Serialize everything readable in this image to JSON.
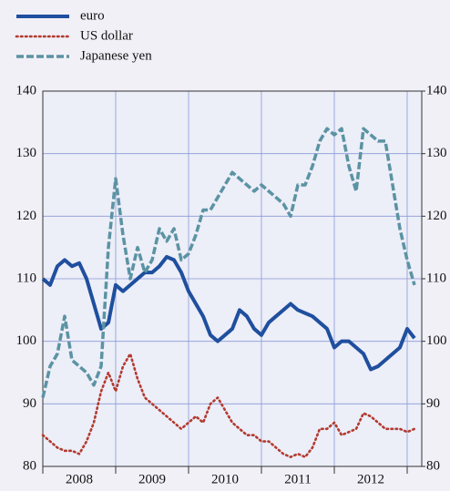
{
  "chart_data": {
    "type": "line",
    "x": [
      2008.0,
      2008.1,
      2008.2,
      2008.3,
      2008.4,
      2008.5,
      2008.6,
      2008.7,
      2008.8,
      2008.9,
      2009.0,
      2009.1,
      2009.2,
      2009.3,
      2009.4,
      2009.5,
      2009.6,
      2009.7,
      2009.8,
      2009.9,
      2010.0,
      2010.1,
      2010.2,
      2010.3,
      2010.4,
      2010.5,
      2010.6,
      2010.7,
      2010.8,
      2010.9,
      2011.0,
      2011.1,
      2011.2,
      2011.3,
      2011.4,
      2011.5,
      2011.6,
      2011.7,
      2011.8,
      2011.9,
      2012.0,
      2012.1,
      2012.2,
      2012.3,
      2012.4,
      2012.5,
      2012.6,
      2012.7,
      2012.8,
      2012.9,
      2013.0,
      2013.1
    ],
    "categories": [
      "2008",
      "2009",
      "2010",
      "2011",
      "2012"
    ],
    "series": [
      {
        "name": "euro",
        "color": "#1f4f9e",
        "style": "solid",
        "values": [
          110,
          109,
          112,
          113,
          112,
          112.5,
          110,
          106,
          102,
          103,
          109,
          108,
          109,
          110,
          111,
          111,
          112,
          113.5,
          113,
          111,
          108,
          106,
          104,
          101,
          100,
          101,
          102,
          105,
          104,
          102,
          101,
          103,
          104,
          105,
          106,
          105,
          104.5,
          104,
          103,
          102,
          99,
          100,
          100,
          99,
          98,
          95.5,
          96,
          97,
          98,
          99,
          102,
          100.5
        ]
      },
      {
        "name": "US dollar",
        "color": "#b33a2e",
        "style": "dotted",
        "values": [
          85,
          84,
          83,
          82.5,
          82.5,
          82,
          84,
          87,
          92,
          95,
          92,
          96,
          98,
          94,
          91,
          90,
          89,
          88,
          87,
          86,
          87,
          88,
          87,
          90,
          91,
          89,
          87,
          86,
          85,
          85,
          84,
          84,
          83,
          82,
          81.5,
          82,
          81.5,
          83,
          86,
          86,
          87,
          85,
          85.5,
          86,
          88.5,
          88,
          87,
          86,
          86,
          86,
          85.5,
          86
        ]
      },
      {
        "name": "Japanese yen",
        "color": "#5b93a3",
        "style": "dashed",
        "values": [
          91,
          96,
          98,
          104,
          97,
          96,
          95,
          93,
          96,
          115,
          126,
          117,
          110,
          115,
          111,
          113,
          118,
          116,
          118,
          113,
          114,
          117,
          121,
          121,
          123,
          125,
          127,
          126,
          125,
          124,
          125,
          124,
          123,
          122,
          120,
          125,
          125,
          128,
          132,
          134,
          133,
          134,
          128,
          124,
          134,
          133,
          132,
          132,
          125,
          118,
          113,
          109
        ]
      }
    ],
    "xlim": [
      2008,
      2013.2
    ],
    "xticks": [
      2008,
      2009,
      2010,
      2011,
      2012,
      2013
    ],
    "ylim": [
      80,
      140
    ],
    "yticks": [
      80,
      90,
      100,
      110,
      120,
      130,
      140
    ],
    "y2lim": [
      80,
      140
    ],
    "y2ticks": [
      80,
      90,
      100,
      110,
      120,
      130,
      140
    ],
    "grid": true,
    "legend": "top-left"
  }
}
